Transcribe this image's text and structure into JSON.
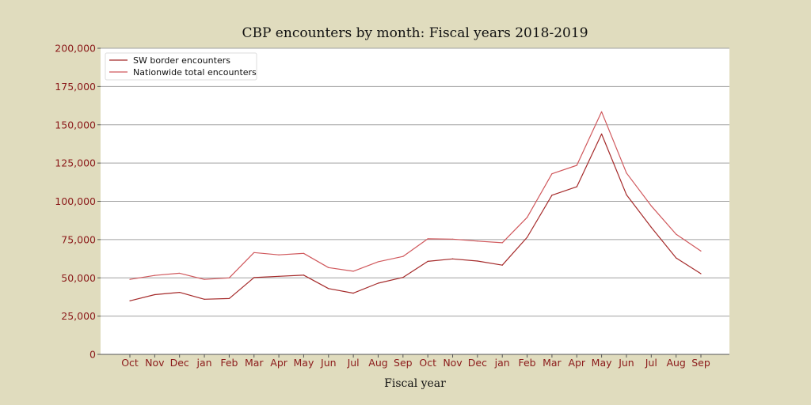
{
  "chart_data": {
    "type": "line",
    "title": "CBP encounters by month: Fiscal years 2018-2019",
    "xlabel": "Fiscal year",
    "ylabel": "",
    "categories": [
      "Oct",
      "Nov",
      "Dec",
      "jan",
      "Feb",
      "Mar",
      "Apr",
      "May",
      "Jun",
      "Jul",
      "Aug",
      "Sep",
      "Oct",
      "Nov",
      "Dec",
      "jan",
      "Feb",
      "Mar",
      "Apr",
      "May",
      "Jun",
      "Jul",
      "Aug",
      "Sep"
    ],
    "ylim": [
      0,
      200000
    ],
    "yticks": [
      0,
      25000,
      50000,
      75000,
      100000,
      125000,
      150000,
      175000,
      200000
    ],
    "ytick_labels": [
      "0",
      "25,000",
      "50,000",
      "75,000",
      "100,000",
      "125,000",
      "150,000",
      "175,000",
      "200,000"
    ],
    "grid": "horizontal",
    "legend_position": "top-left",
    "series": [
      {
        "name": "SW border encounters",
        "color": "#a52a2a",
        "values": [
          35000,
          39000,
          40500,
          36000,
          36500,
          50200,
          51000,
          51800,
          43000,
          40000,
          46500,
          50300,
          60800,
          62400,
          61000,
          58300,
          76500,
          104000,
          109500,
          144000,
          104300,
          83000,
          63000,
          52700
        ]
      },
      {
        "name": "Nationwide total encounters",
        "color": "#d0585c",
        "values": [
          49000,
          51600,
          53000,
          49000,
          50000,
          66500,
          65000,
          66000,
          56700,
          54300,
          60500,
          64000,
          75500,
          75300,
          74000,
          72900,
          89500,
          118000,
          123500,
          158500,
          118500,
          97000,
          78500,
          67500
        ]
      }
    ]
  },
  "colors": {
    "background": "#e0dcbe",
    "plot_background": "#ffffff",
    "tick_label": "#8b1a1a",
    "grid": "#a0a0a0"
  }
}
